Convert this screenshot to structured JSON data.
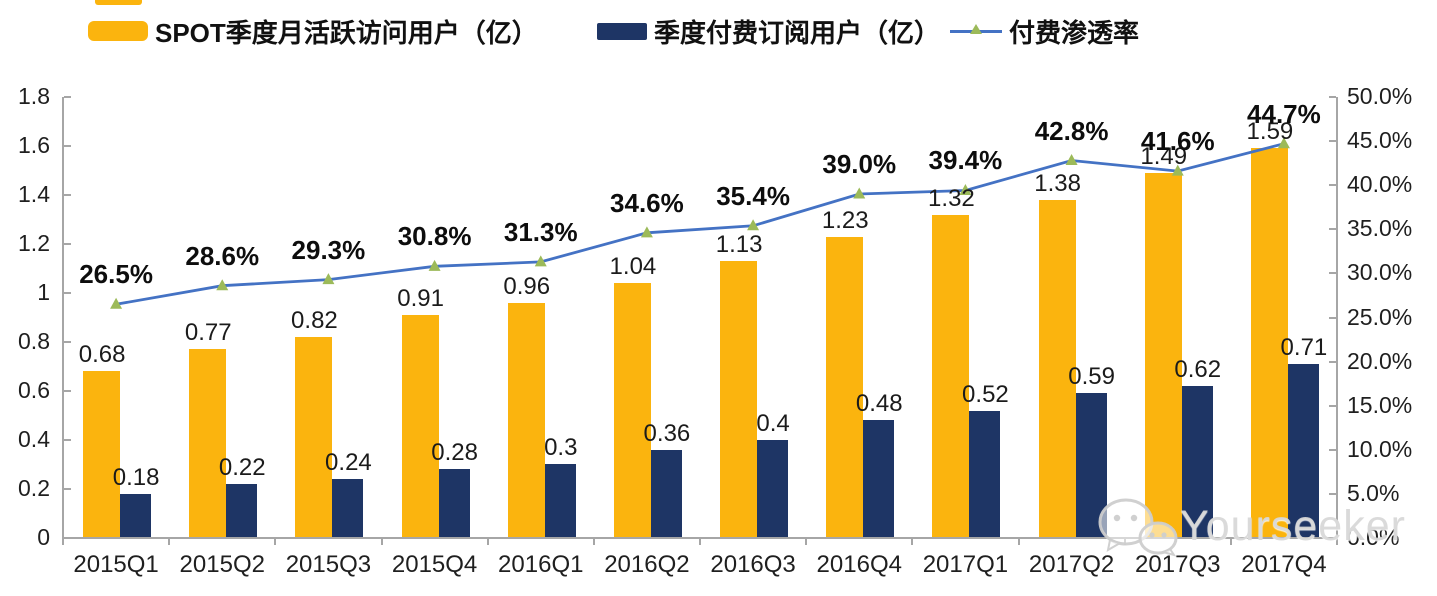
{
  "watermark": {
    "text": "Yourseeker"
  },
  "chart_data": {
    "type": "bar",
    "subtype": "grouped bars + line on secondary axis",
    "categories": [
      "2015Q1",
      "2015Q2",
      "2015Q3",
      "2015Q4",
      "2016Q1",
      "2016Q2",
      "2016Q3",
      "2016Q4",
      "2017Q1",
      "2017Q2",
      "2017Q3",
      "2017Q4"
    ],
    "series": [
      {
        "name": "SPOT季度月活跃访问用户（亿）",
        "type": "bar",
        "axis": "left",
        "color": "#FBB40E",
        "values": [
          0.68,
          0.77,
          0.82,
          0.91,
          0.96,
          1.04,
          1.13,
          1.23,
          1.32,
          1.38,
          1.49,
          1.59
        ],
        "labels": [
          "0.68",
          "0.77",
          "0.82",
          "0.91",
          "0.96",
          "1.04",
          "1.13",
          "1.23",
          "1.32",
          "1.38",
          "1.49",
          "1.59"
        ]
      },
      {
        "name": "季度付费订阅用户（亿）",
        "type": "bar",
        "axis": "left",
        "color": "#1E3565",
        "values": [
          0.18,
          0.22,
          0.24,
          0.28,
          0.3,
          0.36,
          0.4,
          0.48,
          0.52,
          0.59,
          0.62,
          0.71
        ],
        "labels": [
          "0.18",
          "0.22",
          "0.24",
          "0.28",
          "0.3",
          "0.36",
          "0.4",
          "0.48",
          "0.52",
          "0.59",
          "0.62",
          "0.71"
        ]
      },
      {
        "name": "付费渗透率",
        "type": "line",
        "axis": "right",
        "color": "#4472C4",
        "marker": "triangle",
        "marker_color": "#9CBA59",
        "values": [
          26.5,
          28.6,
          29.3,
          30.8,
          31.3,
          34.6,
          35.4,
          39.0,
          39.4,
          42.8,
          41.6,
          44.7
        ],
        "labels": [
          "26.5%",
          "28.6%",
          "29.3%",
          "30.8%",
          "31.3%",
          "34.6%",
          "35.4%",
          "39.0%",
          "39.4%",
          "42.8%",
          "41.6%",
          "44.7%"
        ]
      }
    ],
    "left_axis": {
      "min": 0,
      "max": 1.8,
      "step": 0.2,
      "tick_labels": [
        "1.8",
        "1.6",
        "1.4",
        "1.2",
        "1",
        "0.8",
        "0.6",
        "0.4",
        "0.2",
        "0"
      ]
    },
    "right_axis": {
      "min": 0,
      "max": 50,
      "step": 5,
      "unit": "%",
      "tick_labels": [
        "50.0%",
        "45.0%",
        "40.0%",
        "35.0%",
        "30.0%",
        "25.0%",
        "20.0%",
        "15.0%",
        "10.0%",
        "5.0%",
        "0.0%"
      ]
    },
    "grid": false,
    "legend_position": "top"
  }
}
